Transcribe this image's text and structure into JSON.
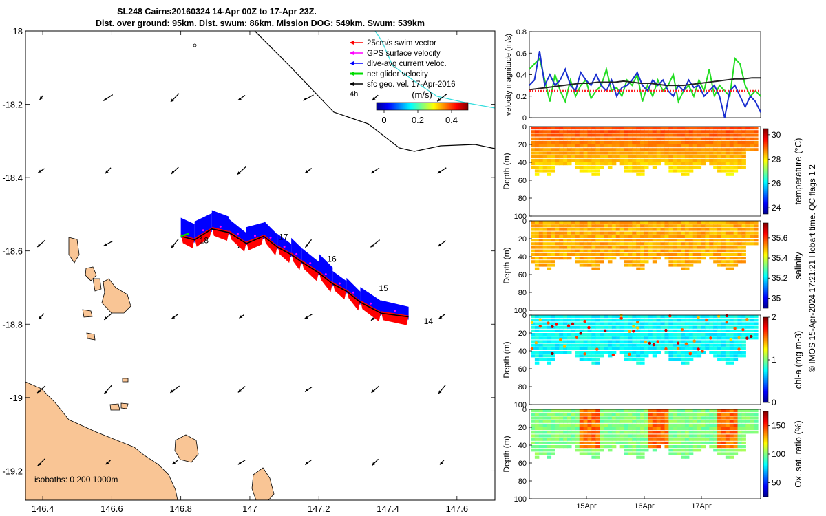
{
  "title": {
    "line1": "SL248 Cairns20160324 14-Apr 00Z to 17-Apr 23Z.",
    "line2": "Dist. over ground: 95km. Dist. swum: 86km. Mission DOG: 549km. Swum: 539km"
  },
  "map": {
    "legend_items": [
      {
        "label": "25cm/s swim vector",
        "color": "#ff0000"
      },
      {
        "label": "GPS surface velocity",
        "color": "#ff00ff"
      },
      {
        "label": "dive-avg current veloc.",
        "color": "#0000ff"
      },
      {
        "label": "net glider velocity",
        "color": "#00dd00"
      },
      {
        "label": "sfc geo. vel. 17-Apr-2016",
        "color": "#000000"
      }
    ],
    "legend_extra": "4h",
    "colorbar_title": "(m/s)",
    "colorbar_ticks": [
      "0",
      "0.2",
      "0.4"
    ],
    "isobaths": "isobaths: 0   200  1000m",
    "day_labels": [
      "18",
      "17",
      "16",
      "15",
      "14"
    ],
    "colors": {
      "land": "#f9c595",
      "swim": "#ff0000",
      "current": "#0000ff",
      "track": "#000000",
      "isobath": "#33dddd"
    }
  },
  "copyright": "© IMOS 15-Apr-2024 17:21:21 Hobart time. QC flags 1  2",
  "chart_data": [
    {
      "type": "scatter",
      "title": "",
      "xlabel": "",
      "ylabel": "",
      "xlim": [
        146.35,
        147.71
      ],
      "ylim": [
        -19.28,
        -18.0
      ],
      "x_ticks": [
        "146.4",
        "146.6",
        "146.8",
        "147",
        "147.2",
        "147.4",
        "147.6"
      ],
      "y_ticks": [
        "-18",
        "-18.2",
        "-18.4",
        "-18.6",
        "-18.8",
        "-19",
        "-19.2"
      ],
      "series": [
        {
          "name": "net glider velocity",
          "x": [
            147.46,
            147.38,
            147.32,
            147.28,
            147.24,
            147.2,
            147.15,
            147.12,
            147.08,
            147.04,
            146.99,
            146.94,
            146.89,
            146.84,
            146.8
          ],
          "y": [
            -18.78,
            -18.77,
            -18.74,
            -18.71,
            -18.69,
            -18.66,
            -18.63,
            -18.61,
            -18.59,
            -18.56,
            -18.58,
            -18.55,
            -18.54,
            -18.57,
            -18.56
          ]
        }
      ]
    },
    {
      "type": "line",
      "ylabel": "velocity magnitude (m/s)",
      "ylim": [
        0,
        0.8
      ],
      "y_ticks": [
        "0",
        "0.2",
        "0.4",
        "0.6",
        "0.8"
      ],
      "series": [
        {
          "name": "",
          "color": "#22dd22",
          "values": [
            0.45,
            0.5,
            0.55,
            0.35,
            0.15,
            0.4,
            0.25,
            0.15,
            0.35,
            0.2,
            0.3,
            0.35,
            0.18,
            0.25,
            0.3,
            0.45,
            0.25,
            0.28,
            0.2,
            0.35,
            0.3,
            0.4,
            0.15,
            0.3,
            0.2,
            0.35,
            0.25,
            0.3,
            0.4,
            0.15,
            0.25,
            0.3,
            0.2,
            0.35,
            0.25,
            0.45,
            0.2,
            0.3,
            0.25,
            0.2,
            0.55,
            0.5,
            0.3,
            0.2,
            0.25,
            0.2
          ]
        },
        {
          "name": "",
          "color": "#1a2fd0",
          "values": [
            0.3,
            0.35,
            0.62,
            0.3,
            0.4,
            0.3,
            0.35,
            0.45,
            0.3,
            0.25,
            0.42,
            0.35,
            0.3,
            0.4,
            0.3,
            0.25,
            0.35,
            0.2,
            0.28,
            0.3,
            0.35,
            0.42,
            0.3,
            0.25,
            0.35,
            0.3,
            0.35,
            0.25,
            0.2,
            0.3,
            0.25,
            0.35,
            0.28,
            0.3,
            0.2,
            0.25,
            0.3,
            0.2,
            0.0,
            0.25,
            0.3,
            0.2,
            0.1,
            0.2,
            0.15,
            0.05
          ]
        },
        {
          "name": "",
          "color": "#222222",
          "values": [
            0.26,
            0.27,
            0.28,
            0.29,
            0.3,
            0.31,
            0.32,
            0.32,
            0.33,
            0.33,
            0.33,
            0.34,
            0.33,
            0.32,
            0.32,
            0.31,
            0.3,
            0.3,
            0.3,
            0.31,
            0.32,
            0.33,
            0.34,
            0.35,
            0.36,
            0.36,
            0.37,
            0.37
          ]
        },
        {
          "name": "",
          "color": "#ff2222",
          "values": [
            0.25,
            0.25
          ]
        }
      ]
    },
    {
      "type": "heatmap",
      "ylabel": "Depth (m)",
      "colorbar_label": "temperature (°C)",
      "y_ticks": [
        "0",
        "20",
        "40",
        "60",
        "80",
        "100"
      ],
      "cbar_ticks": [
        "24",
        "26",
        "28",
        "30"
      ],
      "crange": [
        23.5,
        30.5
      ],
      "base_value": 28.8
    },
    {
      "type": "heatmap",
      "ylabel": "Depth (m)",
      "colorbar_label": "salinity",
      "y_ticks": [
        "0",
        "20",
        "40",
        "60",
        "80",
        "100"
      ],
      "cbar_ticks": [
        "35",
        "35.2",
        "35.4",
        "35.6"
      ],
      "crange": [
        34.9,
        35.75
      ],
      "base_value": 35.5
    },
    {
      "type": "heatmap",
      "ylabel": "Depth (m)",
      "colorbar_label": "chl-a (mg m-3)",
      "y_ticks": [
        "0",
        "20",
        "40",
        "60",
        "80",
        "100"
      ],
      "cbar_ticks": [
        "0",
        "1",
        "2"
      ],
      "crange": [
        0,
        2
      ],
      "base_value": 0.75
    },
    {
      "type": "heatmap",
      "ylabel": "Depth (m)",
      "colorbar_label": "Ox. sat. ratio (%)",
      "y_ticks": [
        "0",
        "20",
        "40",
        "60",
        "80",
        "100"
      ],
      "cbar_ticks": [
        "50",
        "100",
        "150"
      ],
      "crange": [
        25,
        175
      ],
      "base_value": 100,
      "x_ticks": [
        "15Apr",
        "16Apr",
        "17Apr"
      ]
    }
  ]
}
